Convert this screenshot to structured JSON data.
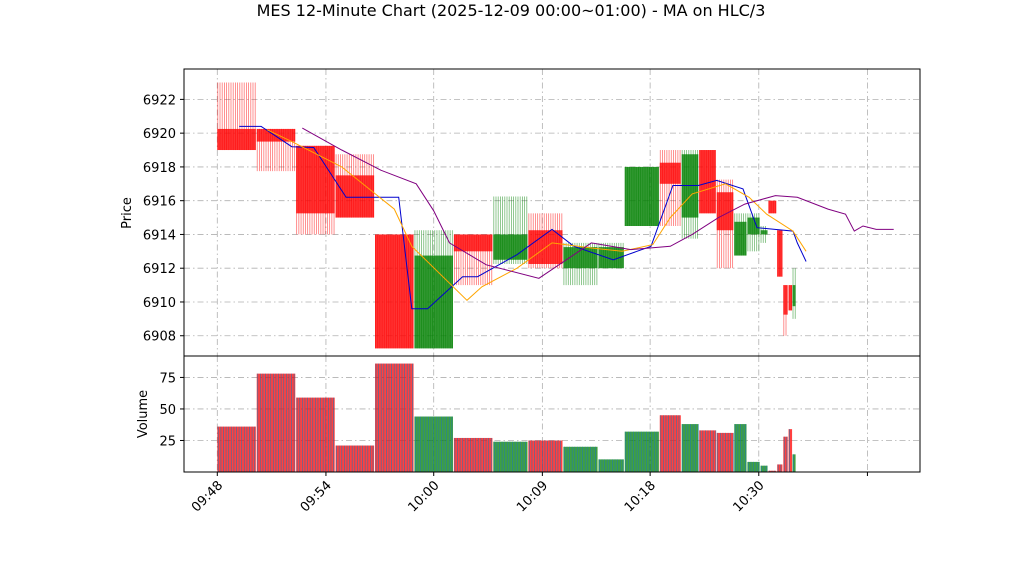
{
  "chart_data": [
    {
      "type": "candlestick",
      "panel": "price",
      "title": "MES 12-Minute Chart (2025-12-09 00:00~01:00) - MA on HLC/3",
      "ylabel": "Price",
      "ylim": [
        6906.8,
        6923.8
      ],
      "yticks": [
        6908,
        6910,
        6912,
        6914,
        6916,
        6918,
        6920,
        6922
      ],
      "grid": true,
      "colors": {
        "up": "#008000",
        "down": "#ff0000",
        "ma_fast": "#0000cd",
        "ma_mid": "#ffa500",
        "ma_slow": "#800080"
      },
      "candles": [
        {
          "t0": 9.8,
          "t1": 14.2,
          "open": 6920.25,
          "high": 6923.0,
          "low": 6919.0,
          "close": 6919.0
        },
        {
          "t0": 14.3,
          "t1": 18.7,
          "open": 6920.25,
          "high": 6920.25,
          "low": 6917.75,
          "close": 6919.5
        },
        {
          "t0": 18.8,
          "t1": 23.2,
          "open": 6919.25,
          "high": 6919.25,
          "low": 6914.0,
          "close": 6915.25
        },
        {
          "t0": 23.3,
          "t1": 27.7,
          "open": 6917.5,
          "high": 6918.75,
          "low": 6915.0,
          "close": 6915.0
        },
        {
          "t0": 27.8,
          "t1": 32.2,
          "open": 6914.0,
          "high": 6914.0,
          "low": 6907.25,
          "close": 6907.25
        },
        {
          "t0": 32.3,
          "t1": 36.7,
          "open": 6907.25,
          "high": 6914.25,
          "low": 6907.25,
          "close": 6912.75
        },
        {
          "t0": 36.8,
          "t1": 41.2,
          "open": 6914.0,
          "high": 6914.0,
          "low": 6911.0,
          "close": 6913.0
        },
        {
          "t0": 41.3,
          "t1": 45.2,
          "open": 6912.5,
          "high": 6916.25,
          "low": 6912.25,
          "close": 6914.0
        },
        {
          "t0": 45.3,
          "t1": 49.2,
          "open": 6914.25,
          "high": 6915.25,
          "low": 6912.0,
          "close": 6912.25
        },
        {
          "t0": 49.3,
          "t1": 53.2,
          "open": 6912.0,
          "high": 6913.5,
          "low": 6911.0,
          "close": 6913.25
        },
        {
          "t0": 53.3,
          "t1": 56.2,
          "open": 6912.0,
          "high": 6913.5,
          "low": 6912.0,
          "close": 6913.25
        },
        {
          "t0": 56.3,
          "t1": 60.2,
          "open": 6914.5,
          "high": 6918.0,
          "low": 6914.5,
          "close": 6918.0
        },
        {
          "t0": 60.3,
          "t1": 62.7,
          "open": 6918.25,
          "high": 6919.0,
          "low": 6914.5,
          "close": 6917.0
        },
        {
          "t0": 62.8,
          "t1": 64.7,
          "open": 6915.0,
          "high": 6919.0,
          "low": 6913.75,
          "close": 6918.75
        },
        {
          "t0": 64.8,
          "t1": 66.7,
          "open": 6919.0,
          "high": 6919.0,
          "low": 6915.25,
          "close": 6915.25
        },
        {
          "t0": 66.8,
          "t1": 68.7,
          "open": 6916.5,
          "high": 6917.25,
          "low": 6912.0,
          "close": 6914.25
        },
        {
          "t0": 68.8,
          "t1": 70.2,
          "open": 6912.75,
          "high": 6915.25,
          "low": 6912.75,
          "close": 6914.75
        },
        {
          "t0": 70.3,
          "t1": 71.7,
          "open": 6914.0,
          "high": 6915.25,
          "low": 6913.0,
          "close": 6915.0
        },
        {
          "t0": 71.8,
          "t1": 72.6,
          "open": 6914.0,
          "high": 6914.5,
          "low": 6913.5,
          "close": 6914.25
        },
        {
          "t0": 72.7,
          "t1": 73.6,
          "open": 6916.0,
          "high": 6916.0,
          "low": 6915.25,
          "close": 6915.25
        },
        {
          "t0": 73.7,
          "t1": 74.3,
          "open": 6914.25,
          "high": 6914.25,
          "low": 6911.5,
          "close": 6911.5
        },
        {
          "t0": 74.4,
          "t1": 74.9,
          "open": 6911.0,
          "high": 6911.0,
          "low": 6908.0,
          "close": 6909.25
        },
        {
          "t0": 75.0,
          "t1": 75.4,
          "open": 6911.0,
          "high": 6911.0,
          "low": 6909.5,
          "close": 6909.5
        },
        {
          "t0": 75.45,
          "t1": 75.8,
          "open": 6909.75,
          "high": 6912.0,
          "low": 6909.0,
          "close": 6911.0
        }
      ],
      "moving_averages": [
        {
          "color_key": "ma_fast",
          "points": [
            [
              12.3,
              6920.4
            ],
            [
              14.8,
              6920.4
            ],
            [
              18.3,
              6919.2
            ],
            [
              20.8,
              6919.15
            ],
            [
              24.5,
              6916.2
            ],
            [
              30.5,
              6916.2
            ],
            [
              32.0,
              6909.6
            ],
            [
              33.8,
              6909.6
            ],
            [
              37.8,
              6911.5
            ],
            [
              39.5,
              6911.5
            ],
            [
              44.0,
              6912.8
            ],
            [
              48.0,
              6914.3
            ],
            [
              50.5,
              6913.3
            ],
            [
              55.0,
              6912.5
            ],
            [
              59.3,
              6913.3
            ],
            [
              61.8,
              6916.9
            ],
            [
              64.7,
              6916.9
            ],
            [
              66.8,
              6917.2
            ],
            [
              69.8,
              6916.7
            ],
            [
              71.4,
              6914.4
            ],
            [
              75.5,
              6914.2
            ],
            [
              76.0,
              6913.5
            ],
            [
              77.0,
              6912.4
            ]
          ]
        },
        {
          "color_key": "ma_mid",
          "points": [
            [
              15.5,
              6920.2
            ],
            [
              18.3,
              6919.5
            ],
            [
              24.0,
              6918.0
            ],
            [
              30.0,
              6915.5
            ],
            [
              32.0,
              6913.3
            ],
            [
              38.3,
              6910.1
            ],
            [
              40.0,
              6910.9
            ],
            [
              44.0,
              6912.0
            ],
            [
              48.0,
              6913.5
            ],
            [
              52.5,
              6913.2
            ],
            [
              56.0,
              6913.0
            ],
            [
              59.5,
              6913.4
            ],
            [
              61.5,
              6915.0
            ],
            [
              64.0,
              6916.4
            ],
            [
              67.8,
              6917.0
            ],
            [
              70.5,
              6916.2
            ],
            [
              72.5,
              6915.2
            ],
            [
              75.5,
              6914.2
            ],
            [
              77.0,
              6913.0
            ]
          ]
        },
        {
          "color_key": "ma_slow",
          "points": [
            [
              19.5,
              6920.3
            ],
            [
              24.0,
              6919.0
            ],
            [
              28.5,
              6917.8
            ],
            [
              32.5,
              6917.0
            ],
            [
              34.5,
              6915.4
            ],
            [
              36.3,
              6913.5
            ],
            [
              40.5,
              6912.2
            ],
            [
              46.5,
              6911.4
            ],
            [
              52.5,
              6913.5
            ],
            [
              57.0,
              6913.1
            ],
            [
              61.5,
              6913.3
            ],
            [
              64.0,
              6914.0
            ],
            [
              67.0,
              6915.0
            ],
            [
              70.0,
              6915.8
            ],
            [
              73.5,
              6916.3
            ],
            [
              76.0,
              6916.2
            ],
            [
              79.5,
              6915.5
            ],
            [
              81.5,
              6915.2
            ],
            [
              82.5,
              6914.2
            ],
            [
              83.5,
              6914.5
            ],
            [
              85.0,
              6914.3
            ],
            [
              87.0,
              6914.3
            ]
          ]
        }
      ]
    },
    {
      "type": "bar",
      "panel": "volume",
      "ylabel": "Volume",
      "ylim": [
        0,
        92
      ],
      "yticks": [
        25,
        50,
        75
      ],
      "grid": true,
      "colors": {
        "up": "#008000",
        "down": "#ff0000",
        "edge": "#1f77b4"
      },
      "bars": [
        {
          "t0": 9.8,
          "t1": 14.2,
          "value": 36,
          "dir": "down"
        },
        {
          "t0": 14.3,
          "t1": 18.7,
          "value": 78,
          "dir": "down"
        },
        {
          "t0": 18.8,
          "t1": 23.2,
          "value": 59,
          "dir": "down"
        },
        {
          "t0": 23.3,
          "t1": 27.7,
          "value": 21,
          "dir": "down"
        },
        {
          "t0": 27.8,
          "t1": 32.2,
          "value": 86,
          "dir": "down"
        },
        {
          "t0": 32.3,
          "t1": 36.7,
          "value": 44,
          "dir": "up"
        },
        {
          "t0": 36.8,
          "t1": 41.2,
          "value": 27,
          "dir": "down"
        },
        {
          "t0": 41.3,
          "t1": 45.2,
          "value": 24,
          "dir": "up"
        },
        {
          "t0": 45.3,
          "t1": 49.2,
          "value": 25,
          "dir": "down"
        },
        {
          "t0": 49.3,
          "t1": 53.2,
          "value": 20,
          "dir": "up"
        },
        {
          "t0": 53.3,
          "t1": 56.2,
          "value": 10,
          "dir": "up"
        },
        {
          "t0": 56.3,
          "t1": 60.2,
          "value": 32,
          "dir": "up"
        },
        {
          "t0": 60.3,
          "t1": 62.7,
          "value": 45,
          "dir": "down"
        },
        {
          "t0": 62.8,
          "t1": 64.7,
          "value": 38,
          "dir": "up"
        },
        {
          "t0": 64.8,
          "t1": 66.7,
          "value": 33,
          "dir": "down"
        },
        {
          "t0": 66.8,
          "t1": 68.7,
          "value": 31,
          "dir": "down"
        },
        {
          "t0": 68.8,
          "t1": 70.2,
          "value": 38,
          "dir": "up"
        },
        {
          "t0": 70.3,
          "t1": 71.7,
          "value": 8,
          "dir": "up"
        },
        {
          "t0": 71.8,
          "t1": 72.6,
          "value": 5,
          "dir": "up"
        },
        {
          "t0": 72.7,
          "t1": 73.6,
          "value": 1,
          "dir": "down"
        },
        {
          "t0": 73.7,
          "t1": 74.3,
          "value": 6,
          "dir": "down"
        },
        {
          "t0": 74.4,
          "t1": 74.9,
          "value": 28,
          "dir": "down"
        },
        {
          "t0": 75.0,
          "t1": 75.4,
          "value": 34,
          "dir": "down"
        },
        {
          "t0": 75.45,
          "t1": 75.8,
          "value": 14,
          "dir": "up"
        }
      ]
    }
  ],
  "x_axis": {
    "xlim": [
      6,
      90
    ],
    "ticks": [
      {
        "pos": 9.8,
        "label": "09:48"
      },
      {
        "pos": 22.2,
        "label": "09:54"
      },
      {
        "pos": 34.5,
        "label": "10:00"
      },
      {
        "pos": 46.9,
        "label": "10:09"
      },
      {
        "pos": 59.2,
        "label": "10:18"
      },
      {
        "pos": 71.6,
        "label": "10:30"
      },
      {
        "pos": 84.0,
        "label": ""
      }
    ]
  }
}
